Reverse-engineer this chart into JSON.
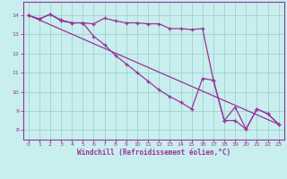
{
  "bg_color": "#c8eeee",
  "line_color": "#993399",
  "grid_color": "#99cccc",
  "xlabel": "Windchill (Refroidissement éolien,°C)",
  "xlim_min": -0.5,
  "xlim_max": 23.5,
  "ylim_min": 7.5,
  "ylim_max": 14.7,
  "xticks": [
    0,
    1,
    2,
    3,
    4,
    5,
    6,
    7,
    8,
    9,
    10,
    11,
    12,
    13,
    14,
    15,
    16,
    17,
    18,
    19,
    20,
    21,
    22,
    23
  ],
  "yticks": [
    8,
    9,
    10,
    11,
    12,
    13,
    14
  ],
  "curve1_x": [
    0,
    1,
    2,
    3,
    4,
    5,
    6,
    7,
    8,
    9,
    10,
    11,
    12,
    13,
    14,
    15,
    16,
    17,
    18,
    19,
    20,
    21,
    22,
    23
  ],
  "curve1_y": [
    14.0,
    13.8,
    14.05,
    13.7,
    13.6,
    13.6,
    13.55,
    13.85,
    13.7,
    13.6,
    13.6,
    13.55,
    13.55,
    13.3,
    13.3,
    13.25,
    13.3,
    10.6,
    8.5,
    9.2,
    8.05,
    9.1,
    8.85,
    8.3
  ],
  "curve2_x": [
    0,
    1,
    2,
    3,
    4,
    5,
    6,
    7,
    8,
    9,
    10,
    11,
    12,
    13,
    14,
    15,
    16,
    17,
    18,
    19,
    20,
    21,
    22,
    23
  ],
  "curve2_y": [
    14.0,
    13.8,
    14.05,
    13.75,
    13.6,
    13.6,
    12.9,
    12.45,
    11.9,
    11.45,
    11.0,
    10.55,
    10.1,
    9.75,
    9.45,
    9.1,
    10.7,
    10.6,
    8.5,
    8.5,
    8.05,
    9.1,
    8.85,
    8.3
  ],
  "line3_x": [
    0,
    23
  ],
  "line3_y": [
    14.0,
    8.3
  ]
}
